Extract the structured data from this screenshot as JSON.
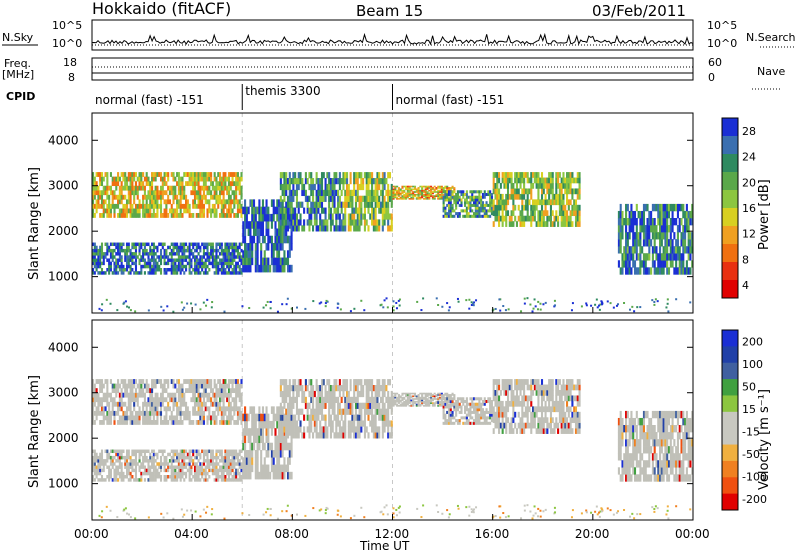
{
  "header": {
    "station": "Hokkaido (fitACF)",
    "beam": "Beam 15",
    "date": "03/Feb/2011"
  },
  "top_strips": {
    "nsky_label": "N.Sky",
    "nsky_ticks": [
      "10^5",
      "10^0"
    ],
    "nsky_right_ticks": [
      "10^5",
      "10^0"
    ],
    "nsearch_label": "N.Search",
    "freq_label": "Freq.",
    "freq_unit": "[MHz]",
    "freq_ticks": [
      "18",
      "8"
    ],
    "nave_ticks": [
      "60",
      "0"
    ],
    "nave_label": "Nave",
    "cpid_label": "CPID",
    "cpid_segments": [
      {
        "label": "normal (fast) -151",
        "start": 0,
        "end": 6.0
      },
      {
        "label": "themis 3300",
        "start": 6.0,
        "end": 12.0
      },
      {
        "label": "normal (fast) -151",
        "start": 12.0,
        "end": 24.0
      }
    ]
  },
  "colors": {
    "power_scale": [
      "#1a2fd4",
      "#3a6fb0",
      "#2f8a60",
      "#5aa84a",
      "#8cc640",
      "#d8d020",
      "#f0a020",
      "#f07010",
      "#e83010",
      "#e00000"
    ],
    "velocity_scale": [
      "#1a2fd4",
      "#2040a8",
      "#4060a0",
      "#40a040",
      "#8cc640",
      "#c8c8c0",
      "#c8c8c0",
      "#f0b040",
      "#f08020",
      "#f05010",
      "#e00000"
    ],
    "gray": "#c0c0b8"
  },
  "chart_data": [
    {
      "type": "heatmap",
      "name": "power",
      "ylabel": "Slant Range [km]",
      "yticks": [
        "1000",
        "2000",
        "3000",
        "4000"
      ],
      "ylim": [
        200,
        4600
      ],
      "xlim": [
        0,
        24
      ],
      "colorbar_label": "Power [dB]",
      "colorbar_ticks": [
        "28",
        "24",
        "20",
        "16",
        "12",
        "8",
        "4"
      ],
      "bands": [
        {
          "start": 0.0,
          "end": 6.0,
          "low": 1050,
          "high": 1750,
          "level": 0.85
        },
        {
          "start": 0.0,
          "end": 6.0,
          "low": 2300,
          "high": 3300,
          "level": 0.45
        },
        {
          "start": 6.0,
          "end": 8.0,
          "low": 1100,
          "high": 2700,
          "level": 0.9
        },
        {
          "start": 7.5,
          "end": 10.0,
          "low": 2000,
          "high": 3300,
          "level": 0.75
        },
        {
          "start": 10.0,
          "end": 12.0,
          "low": 2000,
          "high": 3300,
          "level": 0.6
        },
        {
          "start": 12.0,
          "end": 14.5,
          "low": 2700,
          "high": 3000,
          "level": 0.4
        },
        {
          "start": 14.0,
          "end": 16.0,
          "low": 2300,
          "high": 2900,
          "level": 0.7
        },
        {
          "start": 16.0,
          "end": 19.5,
          "low": 2100,
          "high": 3300,
          "level": 0.55
        },
        {
          "start": 21.0,
          "end": 24.0,
          "low": 1050,
          "high": 2600,
          "level": 0.8
        }
      ]
    },
    {
      "type": "heatmap",
      "name": "velocity",
      "ylabel": "Slant Range [km]",
      "yticks": [
        "1000",
        "2000",
        "3000",
        "4000"
      ],
      "ylim": [
        200,
        4600
      ],
      "xlim": [
        0,
        24
      ],
      "xticks": [
        "00:00",
        "04:00",
        "08:00",
        "12:00",
        "16:00",
        "20:00",
        "00:00"
      ],
      "xlabel": "Time UT",
      "colorbar_label": "Velocity [m s⁻¹]",
      "colorbar_ticks": [
        "200",
        "100",
        "50",
        "15",
        "-15",
        "-50",
        "-100",
        "-200"
      ]
    }
  ]
}
